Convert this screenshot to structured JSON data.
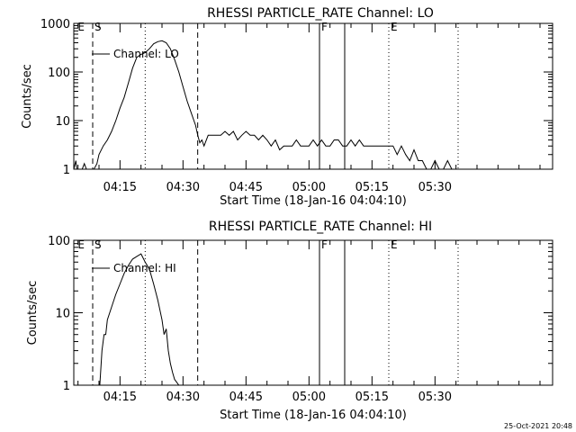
{
  "footer_timestamp": "25-Oct-2021 20:48",
  "chart_data": [
    {
      "type": "line",
      "title": "RHESSI PARTICLE_RATE Channel: LO",
      "xlabel": "Start Time (18-Jan-16 04:04:10)",
      "ylabel": "Counts/sec",
      "yscale": "log",
      "ylim": [
        1,
        1000
      ],
      "xlim_minutes": [
        0,
        114
      ],
      "x_ticks": [
        {
          "t": 11,
          "label": "04:15"
        },
        {
          "t": 26,
          "label": "04:30"
        },
        {
          "t": 41,
          "label": "04:45"
        },
        {
          "t": 56,
          "label": "05:00"
        },
        {
          "t": 71,
          "label": "05:15"
        },
        {
          "t": 86,
          "label": "05:30"
        }
      ],
      "y_ticks": [
        {
          "v": 1,
          "label": "1"
        },
        {
          "v": 10,
          "label": "10"
        },
        {
          "v": 100,
          "label": "100"
        },
        {
          "v": 1000,
          "label": "1000"
        }
      ],
      "legend": "Channel: LO",
      "markers": [
        {
          "t": 0.5,
          "label": "E",
          "style": "none"
        },
        {
          "t": 4.5,
          "label": "S",
          "style": "dashed"
        },
        {
          "t": 17,
          "label": "",
          "style": "dotted"
        },
        {
          "t": 29.5,
          "label": "",
          "style": "dashed"
        },
        {
          "t": 58.5,
          "label": "F",
          "style": "solid"
        },
        {
          "t": 64.5,
          "label": "",
          "style": "solid"
        },
        {
          "t": 75,
          "label": "E",
          "style": "dotted"
        },
        {
          "t": 91.5,
          "label": "",
          "style": "dotted"
        }
      ],
      "series": [
        {
          "x": [
            0,
            0.5,
            0.7,
            1,
            2,
            2.5,
            3,
            4,
            4.8,
            5.5,
            6,
            7,
            8,
            9,
            10,
            11,
            12,
            13,
            14,
            15,
            16,
            17,
            18,
            19,
            20,
            21,
            22,
            23,
            24,
            25,
            26,
            27,
            28,
            29,
            29.5,
            30,
            30.5,
            31,
            32,
            33,
            34,
            35,
            36,
            37,
            38,
            39,
            40,
            41,
            42,
            43,
            44,
            45,
            46,
            47,
            48,
            49,
            50,
            51,
            52,
            53,
            54,
            55,
            56,
            57,
            58,
            59,
            60,
            61,
            62,
            63,
            64,
            65,
            66,
            67,
            68,
            69,
            70,
            71,
            72,
            73,
            74,
            75,
            76,
            77,
            78,
            79,
            80,
            81,
            82,
            83,
            84,
            85,
            86,
            87,
            88,
            89,
            90,
            91,
            92,
            93
          ],
          "y": [
            1,
            1.5,
            1,
            1,
            1,
            1.3,
            1,
            1,
            1,
            1.3,
            2,
            3,
            4,
            6,
            10,
            18,
            30,
            60,
            120,
            200,
            230,
            250,
            300,
            380,
            420,
            440,
            400,
            300,
            180,
            100,
            50,
            25,
            14,
            8,
            5,
            3.5,
            4,
            3,
            5,
            5,
            5,
            5,
            6,
            5,
            6,
            4,
            5,
            6,
            5,
            5,
            4,
            5,
            4,
            3,
            4,
            2.5,
            3,
            3,
            3,
            4,
            3,
            3,
            3,
            4,
            3,
            4,
            3,
            3,
            4,
            4,
            3,
            3,
            4,
            3,
            4,
            3,
            3,
            3,
            3,
            3,
            3,
            3,
            3,
            2,
            3,
            2,
            1.5,
            2.5,
            1.5,
            1.5,
            1,
            1,
            1.5,
            1,
            1,
            1.5,
            1,
            1,
            1,
            1
          ]
        }
      ]
    },
    {
      "type": "line",
      "title": "RHESSI PARTICLE_RATE Channel: HI",
      "xlabel": "Start Time (18-Jan-16 04:04:10)",
      "ylabel": "Counts/sec",
      "yscale": "log",
      "ylim": [
        1,
        100
      ],
      "xlim_minutes": [
        0,
        114
      ],
      "x_ticks": [
        {
          "t": 11,
          "label": "04:15"
        },
        {
          "t": 26,
          "label": "04:30"
        },
        {
          "t": 41,
          "label": "04:45"
        },
        {
          "t": 56,
          "label": "05:00"
        },
        {
          "t": 71,
          "label": "05:15"
        },
        {
          "t": 86,
          "label": "05:30"
        }
      ],
      "y_ticks": [
        {
          "v": 1,
          "label": "1"
        },
        {
          "v": 10,
          "label": "10"
        },
        {
          "v": 100,
          "label": "100"
        }
      ],
      "legend": "Channel: HI",
      "markers": [
        {
          "t": 0.5,
          "label": "E",
          "style": "none"
        },
        {
          "t": 4.5,
          "label": "S",
          "style": "dashed"
        },
        {
          "t": 17,
          "label": "",
          "style": "dotted"
        },
        {
          "t": 29.5,
          "label": "",
          "style": "dashed"
        },
        {
          "t": 58.5,
          "label": "F",
          "style": "solid"
        },
        {
          "t": 64.5,
          "label": "",
          "style": "solid"
        },
        {
          "t": 75,
          "label": "E",
          "style": "dotted"
        },
        {
          "t": 91.5,
          "label": "",
          "style": "dotted"
        }
      ],
      "series": [
        {
          "x": [
            6.2,
            6.7,
            7.2,
            7.6,
            8,
            9,
            10,
            11,
            12,
            13,
            14,
            15,
            16,
            17,
            18,
            19,
            20,
            21,
            21.5,
            22,
            22.5,
            23,
            23.5,
            24,
            24.5,
            25
          ],
          "y": [
            1,
            3,
            5,
            5,
            8,
            12,
            18,
            25,
            35,
            45,
            55,
            60,
            65,
            50,
            40,
            25,
            15,
            8,
            5,
            6,
            3,
            2,
            1.5,
            1.2,
            1.1,
            1
          ]
        }
      ]
    }
  ]
}
